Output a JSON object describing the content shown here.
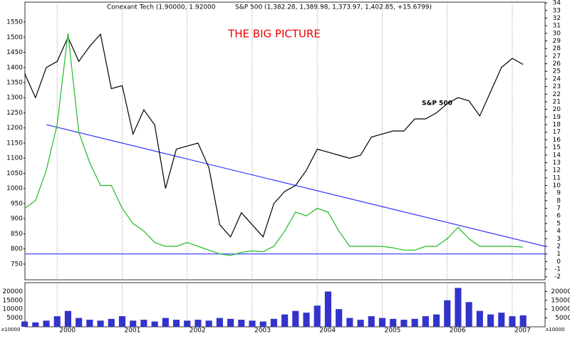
{
  "chart_data": {
    "type": "line",
    "header": "Conexant Tech (1.90000, 1.92000",
    "header_2": "S&P 500 (1,382.28, 1,389.98, 1,373.97, 1,402.85, +15.6799)",
    "title": "THE BIG PICTURE",
    "annotation": "S&P 500",
    "categories": [
      null,
      null,
      null,
      "2000",
      null,
      null,
      null,
      null,
      null,
      "2001",
      null,
      null,
      null,
      null,
      null,
      "2002",
      null,
      null,
      null,
      null,
      null,
      "2003",
      null,
      null,
      null,
      null,
      null,
      "2004",
      null,
      null,
      null,
      null,
      null,
      "2005",
      null,
      null,
      null,
      null,
      null,
      "2006",
      null,
      null,
      null,
      null,
      null,
      "2007",
      null,
      null
    ],
    "series": [
      {
        "name": "S&P 500",
        "color": "#000000",
        "axis": "y",
        "values": [
          1380,
          1300,
          1400,
          1420,
          1500,
          1420,
          1470,
          1510,
          1330,
          1340,
          1180,
          1260,
          1210,
          1000,
          1130,
          1140,
          1150,
          1070,
          880,
          840,
          920,
          880,
          840,
          950,
          990,
          1010,
          1060,
          1130,
          1120,
          1110,
          1100,
          1110,
          1170,
          1180,
          1190,
          1190,
          1230,
          1230,
          1250,
          1280,
          1300,
          1290,
          1240,
          1320,
          1400,
          1430,
          1410,
          null
        ]
      },
      {
        "name": "Conexant Tech",
        "color": "#22bb22",
        "axis": "y2",
        "values": [
          7,
          8,
          12,
          18,
          30,
          17,
          13,
          10,
          10,
          7,
          5,
          4,
          2.5,
          2,
          2,
          2.5,
          2,
          1.5,
          1,
          0.8,
          1.2,
          1.4,
          1.3,
          2,
          4,
          6.5,
          6,
          7,
          6.5,
          4,
          2,
          2,
          2,
          2,
          1.8,
          1.5,
          1.5,
          2,
          2,
          3,
          4.5,
          3,
          2,
          2,
          2,
          2,
          1.9,
          null
        ]
      }
    ],
    "volume": {
      "color": "#3333cc",
      "unit": "x10000",
      "values": [
        3000,
        2500,
        3500,
        6000,
        9000,
        5000,
        4000,
        3500,
        4500,
        6000,
        3500,
        4000,
        3000,
        5000,
        4000,
        3500,
        4000,
        3500,
        5000,
        4500,
        4000,
        3500,
        3000,
        4500,
        7000,
        9000,
        8000,
        12000,
        20000,
        10000,
        5000,
        4000,
        6000,
        5000,
        4500,
        4000,
        4500,
        6000,
        7000,
        15000,
        22000,
        14000,
        9000,
        7000,
        8000,
        6000,
        6500,
        null
      ],
      "ylim": [
        0,
        25000
      ],
      "yticks": [
        5000,
        10000,
        15000,
        20000
      ]
    },
    "trendlines": [
      {
        "color": "#3333ff",
        "values": [
          18,
          2
        ]
      },
      {
        "color": "#3333ff",
        "values": [
          1,
          1
        ]
      }
    ],
    "ylim": [
      698,
      1616
    ],
    "yticks": [
      750,
      800,
      850,
      900,
      950,
      1000,
      1050,
      1100,
      1150,
      1200,
      1250,
      1300,
      1350,
      1400,
      1450,
      1500,
      1550
    ],
    "y2lim": [
      -2.4,
      34.1
    ],
    "y2ticks": [
      -2,
      -1,
      0,
      1,
      2,
      3,
      4,
      5,
      6,
      7,
      8,
      9,
      10,
      11,
      12,
      13,
      14,
      15,
      16,
      17,
      18,
      19,
      20,
      21,
      22,
      23,
      24,
      25,
      26,
      27,
      28,
      29,
      30,
      31,
      32,
      33,
      34
    ],
    "grid": true
  }
}
